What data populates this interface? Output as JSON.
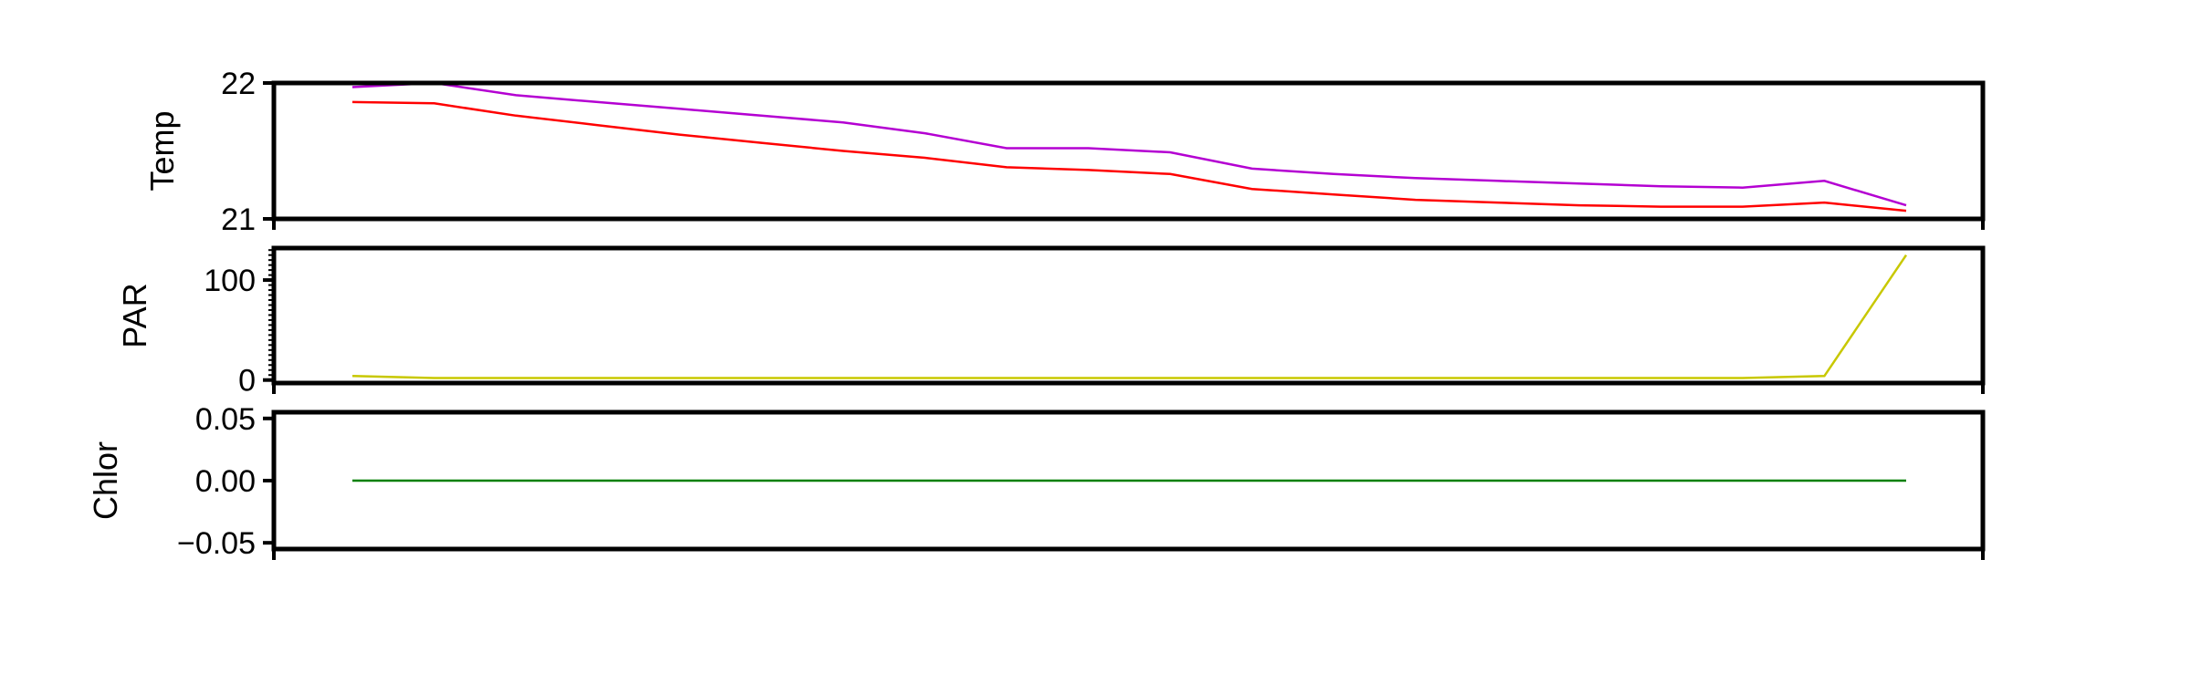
{
  "chart_data": [
    {
      "type": "line",
      "ylabel": "Temp",
      "xlabel": "",
      "title": "",
      "ylim": [
        21,
        22
      ],
      "yticks": [
        21,
        22
      ],
      "ytick_labels": [
        "21",
        "22"
      ],
      "x": [
        0,
        1,
        2,
        3,
        4,
        5,
        6,
        7,
        8,
        9,
        10,
        11,
        12,
        13,
        14,
        15,
        16,
        17,
        18,
        19
      ],
      "series": [
        {
          "color": "#b400d2",
          "values": [
            21.97,
            22.0,
            21.91,
            21.86,
            21.81,
            21.76,
            21.71,
            21.63,
            21.52,
            21.52,
            21.49,
            21.37,
            21.33,
            21.3,
            21.28,
            21.26,
            21.24,
            21.23,
            21.28,
            21.1
          ]
        },
        {
          "color": "#ff0000",
          "values": [
            21.86,
            21.85,
            21.76,
            21.69,
            21.62,
            21.56,
            21.5,
            21.45,
            21.38,
            21.36,
            21.33,
            21.22,
            21.18,
            21.14,
            21.12,
            21.1,
            21.09,
            21.09,
            21.12,
            21.06
          ]
        }
      ]
    },
    {
      "type": "line",
      "ylabel": "PAR",
      "xlabel": "",
      "title": "",
      "ylim": [
        -3,
        132
      ],
      "yticks": [
        0,
        100
      ],
      "ytick_labels": [
        "0",
        "100"
      ],
      "x": [
        0,
        1,
        2,
        3,
        4,
        5,
        6,
        7,
        8,
        9,
        10,
        11,
        12,
        13,
        14,
        15,
        16,
        17,
        18,
        19
      ],
      "series": [
        {
          "color": "#c8c800",
          "values": [
            4,
            2,
            2,
            2,
            2,
            2,
            2,
            2,
            2,
            2,
            2,
            2,
            2,
            2,
            2,
            2,
            2,
            2,
            4,
            125
          ]
        }
      ]
    },
    {
      "type": "line",
      "ylabel": "Chlor",
      "xlabel": "",
      "title": "",
      "ylim": [
        -0.055,
        0.055
      ],
      "yticks": [
        -0.05,
        0.0,
        0.05
      ],
      "ytick_labels": [
        "−0.05",
        "0.00",
        "0.05"
      ],
      "x": [
        0,
        1,
        2,
        3,
        4,
        5,
        6,
        7,
        8,
        9,
        10,
        11,
        12,
        13,
        14,
        15,
        16,
        17,
        18,
        19
      ],
      "series": [
        {
          "color": "#008000",
          "values": [
            0,
            0,
            0,
            0,
            0,
            0,
            0,
            0,
            0,
            0,
            0,
            0,
            0,
            0,
            0,
            0,
            0,
            0,
            0,
            0
          ]
        }
      ]
    }
  ]
}
